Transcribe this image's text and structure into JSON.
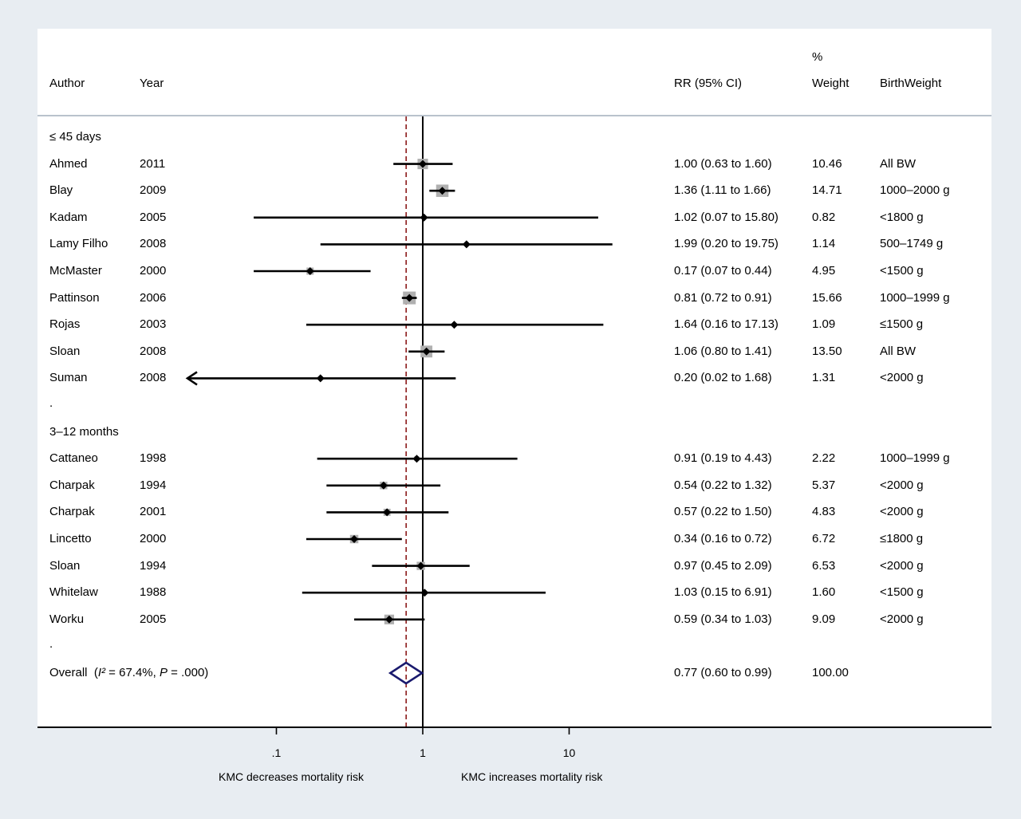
{
  "chart_data": {
    "type": "forest",
    "scale": "log",
    "columns": {
      "author": "Author",
      "year": "Year",
      "rr": "RR (95% CI)",
      "weight_top": "%",
      "weight": "Weight",
      "birthweight": "BirthWeight"
    },
    "x_ticks": [
      {
        "value": 0.1,
        "label": ".1"
      },
      {
        "value": 1,
        "label": "1"
      },
      {
        "value": 10,
        "label": "10"
      }
    ],
    "xlim": [
      0.01,
      100
    ],
    "reference_value": 1,
    "pooled_line_value": 0.77,
    "left_caption": "KMC decreases mortality risk",
    "right_caption": "KMC increases mortality risk",
    "groups": [
      {
        "label": "≤ 45 days",
        "studies": [
          {
            "author": "Ahmed",
            "year": "2011",
            "rr": 1.0,
            "lo": 0.63,
            "hi": 1.6,
            "ci_text": "1.00 (0.63 to 1.60)",
            "weight": 10.46,
            "weight_text": "10.46",
            "bw": "All BW"
          },
          {
            "author": "Blay",
            "year": "2009",
            "rr": 1.36,
            "lo": 1.11,
            "hi": 1.66,
            "ci_text": "1.36 (1.11 to 1.66)",
            "weight": 14.71,
            "weight_text": "14.71",
            "bw": "1000–2000 g"
          },
          {
            "author": "Kadam",
            "year": "2005",
            "rr": 1.02,
            "lo": 0.07,
            "hi": 15.8,
            "ci_text": "1.02 (0.07 to 15.80)",
            "weight": 0.82,
            "weight_text": "0.82",
            "bw": "<1800 g"
          },
          {
            "author": "Lamy Filho",
            "year": "2008",
            "rr": 1.99,
            "lo": 0.2,
            "hi": 19.75,
            "ci_text": "1.99 (0.20 to 19.75)",
            "weight": 1.14,
            "weight_text": "1.14",
            "bw": "500–1749 g"
          },
          {
            "author": "McMaster",
            "year": "2000",
            "rr": 0.17,
            "lo": 0.07,
            "hi": 0.44,
            "ci_text": "0.17 (0.07 to 0.44)",
            "weight": 4.95,
            "weight_text": "4.95",
            "bw": "<1500 g"
          },
          {
            "author": "Pattinson",
            "year": "2006",
            "rr": 0.81,
            "lo": 0.72,
            "hi": 0.91,
            "ci_text": "0.81 (0.72 to 0.91)",
            "weight": 15.66,
            "weight_text": "15.66",
            "bw": "1000–1999 g"
          },
          {
            "author": "Rojas",
            "year": "2003",
            "rr": 1.64,
            "lo": 0.16,
            "hi": 17.13,
            "ci_text": "1.64 (0.16 to 17.13)",
            "weight": 1.09,
            "weight_text": "1.09",
            "bw": "≤1500 g"
          },
          {
            "author": "Sloan",
            "year": "2008",
            "rr": 1.06,
            "lo": 0.8,
            "hi": 1.41,
            "ci_text": "1.06 (0.80 to 1.41)",
            "weight": 13.5,
            "weight_text": "13.50",
            "bw": "All BW"
          },
          {
            "author": "Suman",
            "year": "2008",
            "rr": 0.2,
            "lo": 0.02,
            "hi": 1.68,
            "ci_text": "0.20 (0.02 to 1.68)",
            "weight": 1.31,
            "weight_text": "1.31",
            "bw": "<2000 g",
            "lower_truncated": true
          }
        ],
        "separator": "."
      },
      {
        "label": "3–12 months",
        "studies": [
          {
            "author": "Cattaneo",
            "year": "1998",
            "rr": 0.91,
            "lo": 0.19,
            "hi": 4.43,
            "ci_text": "0.91 (0.19 to 4.43)",
            "weight": 2.22,
            "weight_text": "2.22",
            "bw": "1000–1999 g"
          },
          {
            "author": "Charpak",
            "year": "1994",
            "rr": 0.54,
            "lo": 0.22,
            "hi": 1.32,
            "ci_text": "0.54 (0.22 to 1.32)",
            "weight": 5.37,
            "weight_text": "5.37",
            "bw": "<2000 g"
          },
          {
            "author": "Charpak",
            "year": "2001",
            "rr": 0.57,
            "lo": 0.22,
            "hi": 1.5,
            "ci_text": "0.57 (0.22 to 1.50)",
            "weight": 4.83,
            "weight_text": "4.83",
            "bw": "<2000 g"
          },
          {
            "author": "Lincetto",
            "year": "2000",
            "rr": 0.34,
            "lo": 0.16,
            "hi": 0.72,
            "ci_text": "0.34 (0.16 to 0.72)",
            "weight": 6.72,
            "weight_text": "6.72",
            "bw": "≤1800 g"
          },
          {
            "author": "Sloan",
            "year": "1994",
            "rr": 0.97,
            "lo": 0.45,
            "hi": 2.09,
            "ci_text": "0.97 (0.45 to 2.09)",
            "weight": 6.53,
            "weight_text": "6.53",
            "bw": "<2000 g"
          },
          {
            "author": "Whitelaw",
            "year": "1988",
            "rr": 1.03,
            "lo": 0.15,
            "hi": 6.91,
            "ci_text": "1.03 (0.15 to 6.91)",
            "weight": 1.6,
            "weight_text": "1.60",
            "bw": "<1500 g"
          },
          {
            "author": "Worku",
            "year": "2005",
            "rr": 0.59,
            "lo": 0.34,
            "hi": 1.03,
            "ci_text": "0.59 (0.34 to 1.03)",
            "weight": 9.09,
            "weight_text": "9.09",
            "bw": "<2000 g"
          }
        ],
        "separator": "."
      }
    ],
    "overall": {
      "label_prefix": "Overall  (",
      "i2_symbol": "I²",
      "i2_text": " = 67.4%, ",
      "p_symbol": "P",
      "p_text": " = .000)",
      "rr": 0.77,
      "lo": 0.6,
      "hi": 0.99,
      "ci_text": "0.77 (0.60 to 0.99)",
      "weight_text": "100.00"
    },
    "colors": {
      "background": "#e8edf2",
      "panel": "#ffffff",
      "ci_line": "#000000",
      "weight_box": "#b0b0b0",
      "reference_line": "#000000",
      "pooled_line": "#8b1a1a",
      "diamond": "#1a1a6e"
    }
  }
}
